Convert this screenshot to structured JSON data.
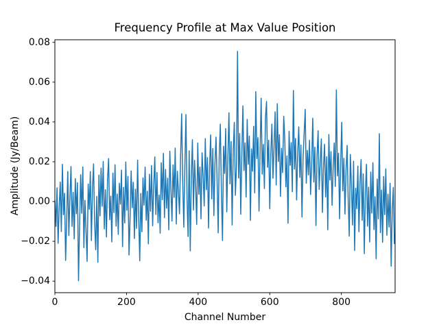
{
  "chart_data": {
    "type": "line",
    "title": "Frequency Profile at Max Value Position",
    "xlabel": "Channel Number",
    "ylabel": "Amplitude (Jy/Beam)",
    "line_color": "#1f77b4",
    "line_width": 1.5,
    "background_color": "#ffffff",
    "grid": false,
    "legend_position": "none",
    "xlim": [
      0,
      950
    ],
    "ylim": [
      -0.0458,
      0.0813
    ],
    "x_ticks": [
      0,
      200,
      400,
      600,
      800
    ],
    "x_tick_labels": [
      "0",
      "200",
      "400",
      "600",
      "800"
    ],
    "y_ticks": [
      0.08,
      0.06,
      0.04,
      0.02,
      0.0,
      -0.02,
      -0.04
    ],
    "y_tick_labels": [
      "0.08",
      "0.06",
      "0.04",
      "0.02",
      "0.00",
      "−0.02",
      "−0.04"
    ],
    "x_start": 0,
    "x_step": 3,
    "max_value": 0.0755,
    "max_channel": 510,
    "y": [
      0.0005,
      -0.0125,
      0.0069,
      -0.021,
      -0.0031,
      0.0098,
      -0.0151,
      0.0187,
      -0.0066,
      0.0042,
      -0.0296,
      -0.0089,
      0.0151,
      -0.0171,
      0.0024,
      0.0176,
      -0.0125,
      0.0046,
      -0.0188,
      0.0115,
      -0.0061,
      0.0095,
      -0.0398,
      -0.0117,
      0.0135,
      -0.0059,
      0.0174,
      -0.0232,
      0.0006,
      -0.0145,
      -0.0301,
      0.0088,
      -0.0039,
      0.0151,
      -0.0196,
      0.0064,
      0.0189,
      -0.0107,
      -0.0242,
      0.0026,
      -0.0305,
      0.0133,
      -0.0072,
      0.0168,
      -0.0024,
      0.0201,
      -0.0138,
      0.0059,
      -0.0178,
      0.0112,
      0.0216,
      -0.0091,
      0.0027,
      -0.0203,
      0.0143,
      -0.0056,
      0.0185,
      -0.0124,
      0.0038,
      -0.0165,
      0.0092,
      -0.0013,
      0.0158,
      -0.0227,
      0.0071,
      -0.0108,
      0.0199,
      -0.0044,
      0.0126,
      -0.0269,
      -0.0083,
      0.0154,
      -0.0031,
      0.0097,
      -0.0186,
      0.0062,
      -0.0135,
      0.0208,
      -0.0076,
      -0.0298,
      0.0041,
      -0.0152,
      0.0119,
      -0.0018,
      0.0173,
      -0.0094,
      0.0052,
      -0.0213,
      0.0137,
      -0.0049,
      0.0181,
      -0.0122,
      0.0078,
      0.0224,
      -0.0065,
      0.0146,
      -0.0107,
      0.0033,
      -0.0159,
      0.0195,
      0.0009,
      0.0242,
      -0.0081,
      0.0161,
      -0.0034,
      0.0117,
      -0.0142,
      0.0253,
      0.0066,
      -0.0098,
      0.0184,
      0.0021,
      0.0269,
      -0.0113,
      0.0152,
      0.0047,
      -0.0062,
      0.0228,
      0.0441,
      0.0094,
      -0.0129,
      0.0186,
      0.0437,
      0.0018,
      -0.0176,
      0.0255,
      -0.0248,
      0.0123,
      0.0311,
      -0.0043,
      0.0207,
      0.0082,
      -0.0115,
      0.0294,
      0.0036,
      0.0173,
      -0.0087,
      0.0245,
      0.0128,
      -0.0022,
      0.0316,
      0.0059,
      0.0221,
      -0.0134,
      0.0178,
      0.0335,
      0.0013,
      0.0266,
      -0.0071,
      0.0193,
      0.0324,
      0.0102,
      -0.0158,
      0.0237,
      0.0389,
      0.0045,
      -0.0196,
      0.0278,
      0.0141,
      0.0367,
      -0.0052,
      0.0215,
      0.0446,
      0.0089,
      0.0302,
      -0.0118,
      0.0256,
      0.0398,
      0.0031,
      0.0174,
      0.0755,
      0.0118,
      0.0342,
      -0.0064,
      0.0237,
      0.0481,
      0.0156,
      0.0295,
      0.0022,
      0.0413,
      0.0187,
      0.0329,
      -0.0095,
      0.0264,
      0.0152,
      0.0378,
      0.0043,
      0.0552,
      0.0216,
      0.0321,
      -0.0048,
      0.0253,
      0.0519,
      0.0138,
      0.0287,
      0.0065,
      0.0421,
      0.0503,
      0.0172,
      0.0308,
      -0.0036,
      0.0244,
      0.0389,
      0.0117,
      0.0275,
      0.0451,
      0.0083,
      0.0492,
      0.0201,
      0.0336,
      0.0026,
      0.0268,
      0.0145,
      0.0428,
      0.0312,
      0.0074,
      0.0229,
      -0.0109,
      0.0353,
      0.0182,
      0.0296,
      0.0049,
      0.0558,
      0.0163,
      0.0317,
      0.0008,
      0.0242,
      0.0375,
      0.0121,
      0.0284,
      -0.0078,
      0.0219,
      0.0341,
      0.0463,
      0.0092,
      0.0257,
      0.0134,
      0.0308,
      0.0035,
      0.0186,
      0.0419,
      0.0098,
      0.0273,
      -0.0121,
      0.0232,
      0.0356,
      0.0061,
      0.0197,
      0.0315,
      -0.0055,
      0.0174,
      0.0288,
      0.0023,
      0.0225,
      -0.0142,
      0.0337,
      0.0108,
      0.0251,
      -0.0019,
      0.0168,
      0.0294,
      0.0076,
      0.0561,
      0.0129,
      0.0243,
      -0.0087,
      0.0192,
      0.0398,
      0.0054,
      0.0217,
      -0.0063,
      0.0155,
      0.0282,
      0.0011,
      -0.0174,
      0.0236,
      0.0085,
      -0.0118,
      0.0203,
      -0.0246,
      0.0067,
      -0.0036,
      0.0178,
      -0.0152,
      0.0094,
      0.0211,
      -0.0095,
      0.0139,
      -0.0262,
      0.0046,
      0.0187,
      -0.0124,
      0.0072,
      -0.0203,
      0.0148,
      -0.0058,
      0.0195,
      -0.0141,
      0.0024,
      -0.0288,
      0.0113,
      -0.0087,
      0.0341,
      -0.0156,
      0.0058,
      -0.0205,
      0.0126,
      -0.0066,
      0.0164,
      -0.0169,
      0.0037,
      -0.0128,
      0.0092,
      -0.0325,
      -0.0043,
      0.0071,
      -0.0214
    ]
  }
}
